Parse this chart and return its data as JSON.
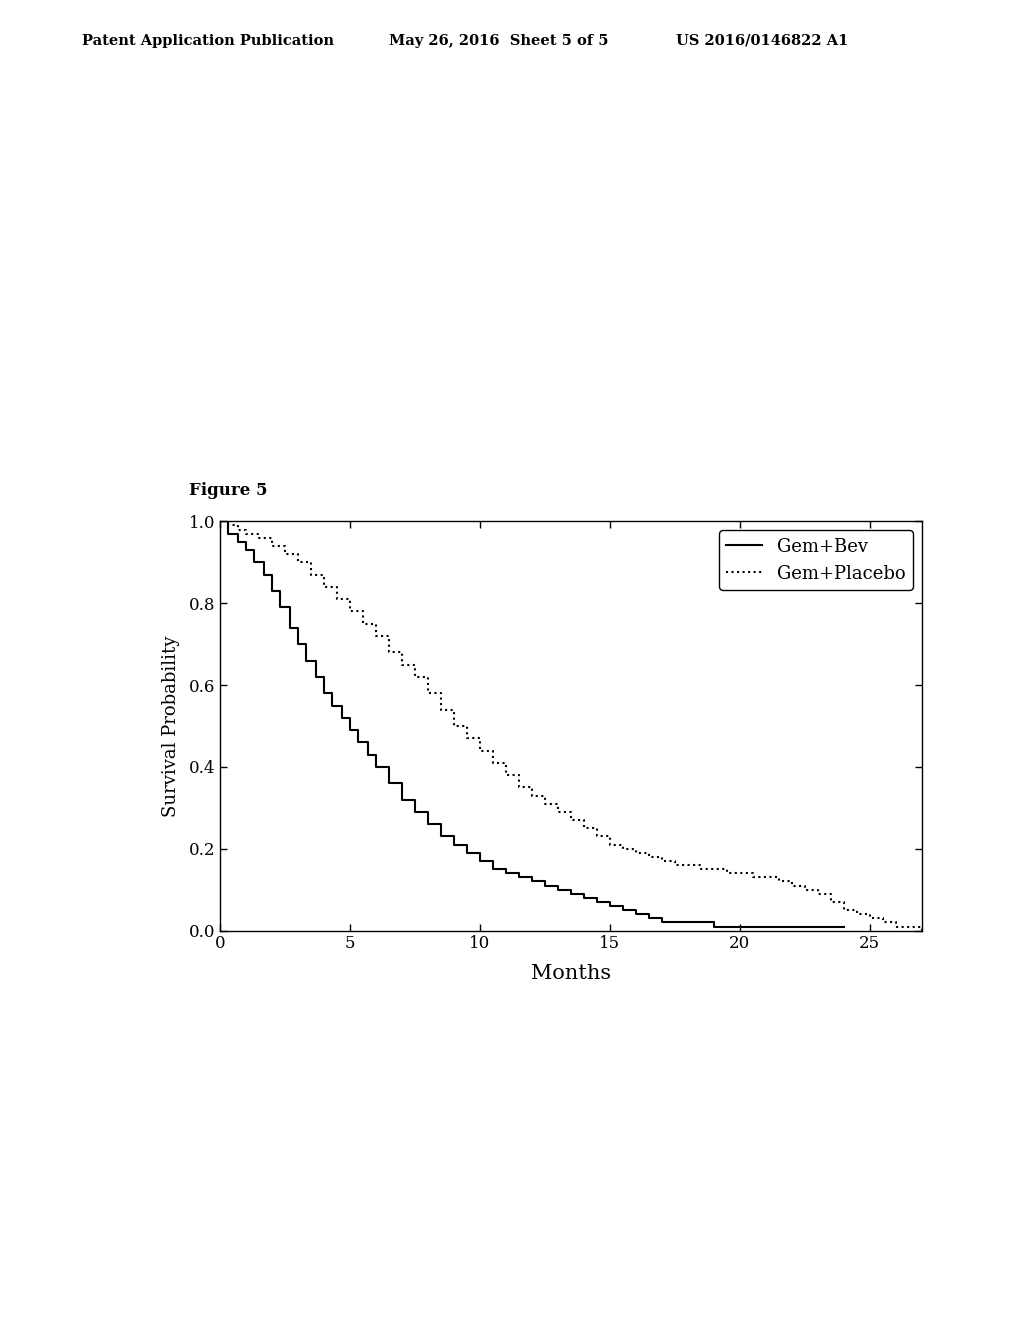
{
  "figure_label": "Figure 5",
  "patent_header_left": "Patent Application Publication",
  "patent_header_mid": "May 26, 2016  Sheet 5 of 5",
  "patent_header_right": "US 2016/0146822 A1",
  "xlabel": "Months",
  "ylabel": "Survival Probability",
  "xlim": [
    0,
    27
  ],
  "ylim": [
    0,
    1.0
  ],
  "xticks": [
    0,
    5,
    10,
    15,
    20,
    25
  ],
  "yticks": [
    0.0,
    0.2,
    0.4,
    0.6,
    0.8,
    1.0
  ],
  "legend_labels": [
    "Gem+Bev",
    "Gem+Placebo"
  ],
  "line_color": "#000000",
  "background_color": "#ffffff",
  "gem_bev_x": [
    0,
    0.3,
    0.7,
    1.0,
    1.3,
    1.7,
    2.0,
    2.3,
    2.7,
    3.0,
    3.3,
    3.7,
    4.0,
    4.3,
    4.7,
    5.0,
    5.3,
    5.7,
    6.0,
    6.5,
    7.0,
    7.5,
    8.0,
    8.5,
    9.0,
    9.5,
    10.0,
    10.5,
    11.0,
    11.5,
    12.0,
    12.5,
    13.0,
    13.5,
    14.0,
    14.5,
    15.0,
    15.5,
    16.0,
    16.5,
    17.0,
    18.0,
    19.0,
    20.0,
    21.0,
    22.0,
    23.0,
    24.0
  ],
  "gem_bev_y": [
    1.0,
    0.97,
    0.95,
    0.93,
    0.9,
    0.87,
    0.83,
    0.79,
    0.74,
    0.7,
    0.66,
    0.62,
    0.58,
    0.55,
    0.52,
    0.49,
    0.46,
    0.43,
    0.4,
    0.36,
    0.32,
    0.29,
    0.26,
    0.23,
    0.21,
    0.19,
    0.17,
    0.15,
    0.14,
    0.13,
    0.12,
    0.11,
    0.1,
    0.09,
    0.08,
    0.07,
    0.06,
    0.05,
    0.04,
    0.03,
    0.02,
    0.02,
    0.01,
    0.01,
    0.01,
    0.01,
    0.01,
    0.01
  ],
  "gem_placebo_x": [
    0,
    0.3,
    0.7,
    1.0,
    1.5,
    2.0,
    2.5,
    3.0,
    3.5,
    4.0,
    4.5,
    5.0,
    5.5,
    6.0,
    6.5,
    7.0,
    7.5,
    8.0,
    8.5,
    9.0,
    9.5,
    10.0,
    10.5,
    11.0,
    11.5,
    12.0,
    12.5,
    13.0,
    13.5,
    14.0,
    14.5,
    15.0,
    15.5,
    16.0,
    16.5,
    17.0,
    17.5,
    18.0,
    18.5,
    19.0,
    19.5,
    20.0,
    20.5,
    21.0,
    21.5,
    22.0,
    22.5,
    23.0,
    23.5,
    24.0,
    24.5,
    25.0,
    25.5,
    26.0,
    26.5,
    27.0
  ],
  "gem_placebo_y": [
    1.0,
    0.99,
    0.98,
    0.97,
    0.96,
    0.94,
    0.92,
    0.9,
    0.87,
    0.84,
    0.81,
    0.78,
    0.75,
    0.72,
    0.68,
    0.65,
    0.62,
    0.58,
    0.54,
    0.5,
    0.47,
    0.44,
    0.41,
    0.38,
    0.35,
    0.33,
    0.31,
    0.29,
    0.27,
    0.25,
    0.23,
    0.21,
    0.2,
    0.19,
    0.18,
    0.17,
    0.16,
    0.16,
    0.15,
    0.15,
    0.14,
    0.14,
    0.13,
    0.13,
    0.12,
    0.11,
    0.1,
    0.09,
    0.07,
    0.05,
    0.04,
    0.03,
    0.02,
    0.01,
    0.01,
    0.0
  ]
}
